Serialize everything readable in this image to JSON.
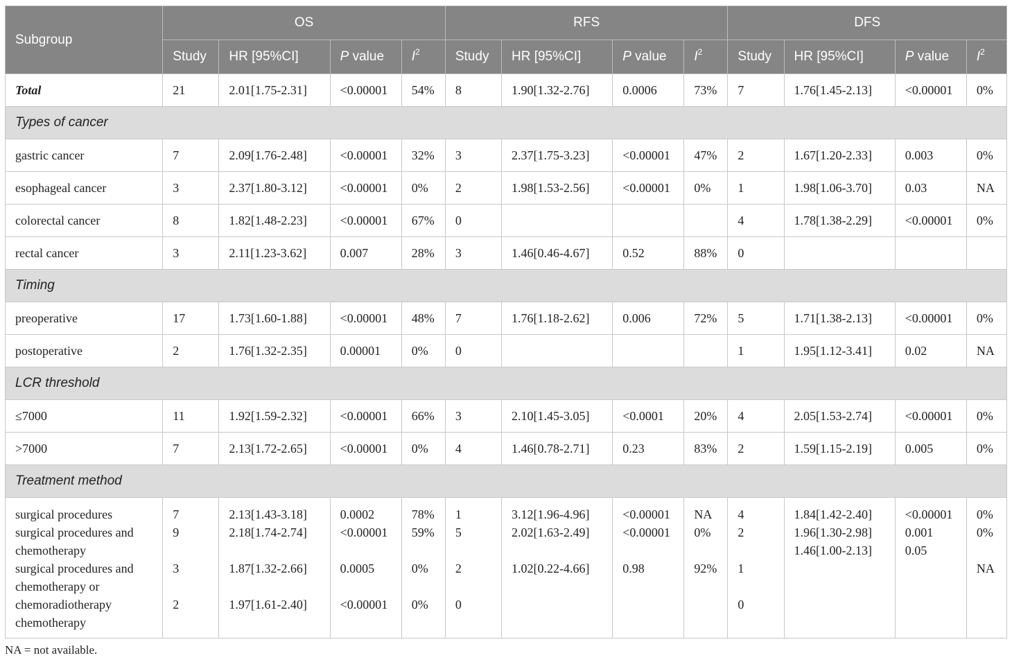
{
  "header": {
    "subgroup": "Subgroup",
    "groups": [
      "OS",
      "RFS",
      "DFS"
    ],
    "study": "Study",
    "hr": "HR [95%CI]",
    "p_italic": "P",
    "p_rest": " value",
    "i_italic": "I",
    "i_sup": "2"
  },
  "rows": {
    "total": {
      "label": "Total",
      "os": [
        "21",
        "2.01[1.75-2.31]",
        "<0.00001",
        "54%"
      ],
      "rfs": [
        "8",
        "1.90[1.32-2.76]",
        "0.0006",
        "73%"
      ],
      "dfs": [
        "7",
        "1.76[1.45-2.13]",
        "<0.00001",
        "0%"
      ]
    },
    "sec_cancer": "Types of cancer",
    "gastric": {
      "label": "gastric cancer",
      "os": [
        "7",
        "2.09[1.76-2.48]",
        "<0.00001",
        "32%"
      ],
      "rfs": [
        "3",
        "2.37[1.75-3.23]",
        "<0.00001",
        "47%"
      ],
      "dfs": [
        "2",
        "1.67[1.20-2.33]",
        "0.003",
        "0%"
      ]
    },
    "esophageal": {
      "label": "esophageal cancer",
      "os": [
        "3",
        "2.37[1.80-3.12]",
        "<0.00001",
        "0%"
      ],
      "rfs": [
        "2",
        "1.98[1.53-2.56]",
        "<0.00001",
        "0%"
      ],
      "dfs": [
        "1",
        "1.98[1.06-3.70]",
        "0.03",
        "NA"
      ]
    },
    "colorectal": {
      "label": "colorectal cancer",
      "os": [
        "8",
        "1.82[1.48-2.23]",
        "<0.00001",
        "67%"
      ],
      "rfs": [
        "0",
        "",
        "",
        ""
      ],
      "dfs": [
        "4",
        "1.78[1.38-2.29]",
        "<0.00001",
        "0%"
      ]
    },
    "rectal": {
      "label": "rectal cancer",
      "os": [
        "3",
        "2.11[1.23-3.62]",
        "0.007",
        "28%"
      ],
      "rfs": [
        "3",
        "1.46[0.46-4.67]",
        "0.52",
        "88%"
      ],
      "dfs": [
        "0",
        "",
        "",
        ""
      ]
    },
    "sec_timing": "Timing",
    "preop": {
      "label": "preoperative",
      "os": [
        "17",
        "1.73[1.60-1.88]",
        "<0.00001",
        "48%"
      ],
      "rfs": [
        "7",
        "1.76[1.18-2.62]",
        "0.006",
        "72%"
      ],
      "dfs": [
        "5",
        "1.71[1.38-2.13]",
        "<0.00001",
        "0%"
      ]
    },
    "postop": {
      "label": "postoperative",
      "os": [
        "2",
        "1.76[1.32-2.35]",
        "0.00001",
        "0%"
      ],
      "rfs": [
        "0",
        "",
        "",
        ""
      ],
      "dfs": [
        "1",
        "1.95[1.12-3.41]",
        "0.02",
        "NA"
      ]
    },
    "sec_lcr": "LCR threshold",
    "le7000": {
      "label": "≤7000",
      "os": [
        "11",
        "1.92[1.59-2.32]",
        "<0.00001",
        "66%"
      ],
      "rfs": [
        "3",
        "2.10[1.45-3.05]",
        "<0.0001",
        "20%"
      ],
      "dfs": [
        "4",
        "2.05[1.53-2.74]",
        "<0.00001",
        "0%"
      ]
    },
    "gt7000": {
      "label": ">7000",
      "os": [
        "7",
        "2.13[1.72-2.65]",
        "<0.00001",
        "0%"
      ],
      "rfs": [
        "4",
        "1.46[0.78-2.71]",
        "0.23",
        "83%"
      ],
      "dfs": [
        "2",
        "1.59[1.15-2.19]",
        "0.005",
        "0%"
      ]
    },
    "sec_treat": "Treatment method",
    "treatment": {
      "label": "surgical procedures\nsurgical procedures and\nchemotherapy\nsurgical procedures and\nchemotherapy or\nchemoradiotherapy\nchemotherapy",
      "os": [
        "7\n9\n\n3\n\n2",
        "2.13[1.43-3.18]\n2.18[1.74-2.74]\n\n1.87[1.32-2.66]\n\n1.97[1.61-2.40]",
        "0.0002\n<0.00001\n\n0.0005\n\n<0.00001",
        "78%\n59%\n\n0%\n\n0%"
      ],
      "rfs": [
        "1\n5\n\n2\n\n0",
        "3.12[1.96-4.96]\n2.02[1.63-2.49]\n\n1.02[0.22-4.66]",
        "<0.00001\n<0.00001\n\n0.98",
        "NA\n0%\n\n92%"
      ],
      "dfs": [
        "4\n2\n\n1\n\n0",
        "1.84[1.42-2.40]\n1.96[1.30-2.98]\n1.46[1.00-2.13]",
        "<0.00001\n0.001\n0.05",
        "0%\n0%\n\nNA"
      ]
    }
  },
  "footnote": "NA = not available."
}
